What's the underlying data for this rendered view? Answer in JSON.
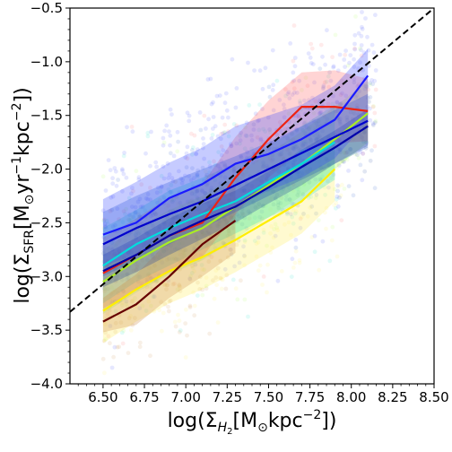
{
  "chart_data": {
    "type": "line",
    "xlabel": {
      "prefix": "log(Σ",
      "sub": "H",
      "subsub": "2",
      "bracket_open": "[M",
      "sun": "⊙",
      "unit": "kpc",
      "exp": "−2",
      "close": "])"
    },
    "ylabel": {
      "prefix": "log(Σ",
      "sub": "SFR",
      "bracket_open": "[M",
      "sun": "⊙",
      "unit1": "yr",
      "exp1": "−1",
      "unit2": "kpc",
      "exp2": "−2",
      "close": "])"
    },
    "xlim": [
      6.3,
      8.5
    ],
    "ylim": [
      -4.0,
      -0.5
    ],
    "xticks": [
      "6.50",
      "6.75",
      "7.00",
      "7.25",
      "7.50",
      "7.75",
      "8.00",
      "8.25",
      "8.50"
    ],
    "xtick_values": [
      6.5,
      6.75,
      7.0,
      7.25,
      7.5,
      7.75,
      8.0,
      8.25,
      8.5
    ],
    "yticks": [
      "−4.0",
      "−3.5",
      "−3.0",
      "−2.5",
      "−2.0",
      "−1.5",
      "−1.0",
      "−0.5"
    ],
    "ytick_values": [
      -4.0,
      -3.5,
      -3.0,
      -2.5,
      -2.0,
      -1.5,
      -1.0,
      -0.5
    ],
    "reference_line": {
      "style": "dashed",
      "color": "#000000",
      "x": [
        6.3,
        8.5
      ],
      "y": [
        -3.33,
        -0.5
      ]
    },
    "series": [
      {
        "color": "#1a1aff",
        "band_color": "#3344ff",
        "x": [
          6.5,
          6.7,
          6.9,
          7.1,
          7.3,
          7.5,
          7.7,
          7.9,
          8.1
        ],
        "y": [
          -2.61,
          -2.5,
          -2.27,
          -2.14,
          -1.95,
          -1.86,
          -1.72,
          -1.54,
          -1.13
        ],
        "lower": [
          -2.9,
          -2.8,
          -2.62,
          -2.5,
          -2.34,
          -2.2,
          -2.08,
          -1.9,
          -1.55
        ],
        "upper": [
          -2.28,
          -2.12,
          -1.94,
          -1.8,
          -1.6,
          -1.5,
          -1.4,
          -1.22,
          -0.88
        ]
      },
      {
        "color": "#0000aa",
        "band_color": "#1a3a99",
        "x": [
          6.5,
          6.7,
          6.9,
          7.1,
          7.3,
          7.5,
          7.7,
          7.9,
          8.1
        ],
        "y": [
          -2.95,
          -2.8,
          -2.62,
          -2.48,
          -2.35,
          -2.17,
          -1.98,
          -1.8,
          -1.6
        ],
        "lower": [
          -3.1,
          -2.96,
          -2.8,
          -2.65,
          -2.5,
          -2.32,
          -2.15,
          -1.95,
          -1.78
        ],
        "upper": [
          -2.8,
          -2.64,
          -2.46,
          -2.32,
          -2.2,
          -2.02,
          -1.82,
          -1.64,
          -1.44
        ]
      },
      {
        "color": "#0000cc",
        "band_color": "#2255cc",
        "x": [
          6.5,
          6.7,
          6.9,
          7.1,
          7.3,
          7.5,
          7.7,
          7.9,
          8.1
        ],
        "y": [
          -2.7,
          -2.55,
          -2.42,
          -2.3,
          -2.15,
          -2.0,
          -1.85,
          -1.7,
          -1.55
        ],
        "lower": [
          -3.0,
          -2.85,
          -2.7,
          -2.55,
          -2.4,
          -2.25,
          -2.1,
          -1.95,
          -1.8
        ],
        "upper": [
          -2.4,
          -2.25,
          -2.12,
          -2.0,
          -1.88,
          -1.75,
          -1.6,
          -1.45,
          -1.3
        ]
      },
      {
        "color": "#00dddd",
        "band_color": "#22ddcc",
        "x": [
          6.5,
          6.7,
          6.9,
          7.1,
          7.3,
          7.5,
          7.7,
          7.9
        ],
        "y": [
          -2.9,
          -2.7,
          -2.55,
          -2.42,
          -2.3,
          -2.12,
          -1.95,
          -1.75
        ],
        "lower": [
          -3.25,
          -3.05,
          -2.9,
          -2.75,
          -2.6,
          -2.45,
          -2.3,
          -2.1
        ],
        "upper": [
          -2.55,
          -2.38,
          -2.2,
          -2.08,
          -1.95,
          -1.78,
          -1.6,
          -1.4
        ]
      },
      {
        "color": "#ee2211",
        "band_color": "#ff6666",
        "x": [
          6.5,
          6.7,
          6.9,
          7.1,
          7.3,
          7.5,
          7.7,
          7.9,
          8.1
        ],
        "y": [
          -2.97,
          -2.8,
          -2.62,
          -2.5,
          -2.08,
          -1.72,
          -1.42,
          -1.42,
          -1.46
        ],
        "lower": [
          -3.3,
          -3.12,
          -2.96,
          -2.82,
          -2.42,
          -2.08,
          -1.82,
          -1.76,
          -1.74
        ],
        "upper": [
          -2.64,
          -2.46,
          -2.26,
          -2.14,
          -1.7,
          -1.36,
          -1.1,
          -1.08,
          -1.16
        ]
      },
      {
        "color": "#aaee22",
        "band_color": "#aaff55",
        "x": [
          6.5,
          6.7,
          6.9,
          7.1,
          7.3,
          7.5,
          7.7,
          7.9,
          8.1
        ],
        "y": [
          -3.05,
          -2.85,
          -2.68,
          -2.55,
          -2.35,
          -2.15,
          -1.95,
          -1.72,
          -1.48
        ],
        "lower": [
          -3.35,
          -3.15,
          -2.98,
          -2.85,
          -2.65,
          -2.45,
          -2.25,
          -2.0,
          -1.75
        ],
        "upper": [
          -2.75,
          -2.55,
          -2.38,
          -2.25,
          -2.05,
          -1.85,
          -1.65,
          -1.42,
          -1.18
        ]
      },
      {
        "color": "#ffee00",
        "band_color": "#ffee55",
        "x": [
          6.5,
          6.7,
          6.9,
          7.1,
          7.3,
          7.5,
          7.7,
          7.9
        ],
        "y": [
          -3.32,
          -3.12,
          -2.95,
          -2.82,
          -2.66,
          -2.48,
          -2.3,
          -2.0
        ],
        "lower": [
          -3.62,
          -3.42,
          -3.25,
          -3.12,
          -2.96,
          -2.78,
          -2.6,
          -2.3
        ],
        "upper": [
          -3.02,
          -2.82,
          -2.65,
          -2.52,
          -2.36,
          -2.18,
          -2.0,
          -1.7
        ]
      },
      {
        "color": "#660000",
        "band_color": "#cc8844",
        "x": [
          6.5,
          6.7,
          6.9,
          7.1,
          7.3
        ],
        "y": [
          -3.42,
          -3.26,
          -3.0,
          -2.7,
          -2.48
        ],
        "lower": [
          -3.52,
          -3.45,
          -3.2,
          -3.0,
          -2.78
        ],
        "upper": [
          -3.2,
          -2.98,
          -2.66,
          -2.4,
          -2.15
        ]
      }
    ],
    "grid": false,
    "legend": "none"
  }
}
